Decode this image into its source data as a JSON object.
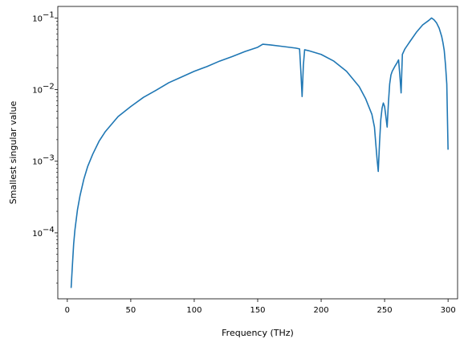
{
  "chart_data": {
    "type": "line",
    "title": "",
    "xlabel": "Frequency (THz)",
    "ylabel": "Smallest singular value",
    "xscale": "linear",
    "yscale": "log",
    "xlim": [
      -7.5,
      307.5
    ],
    "ylim": [
      1.2e-05,
      0.145
    ],
    "grid": false,
    "legend": "none",
    "line_color": "#1f77b4",
    "x_ticks": [
      {
        "value": 0,
        "label": "0"
      },
      {
        "value": 50,
        "label": "50"
      },
      {
        "value": 100,
        "label": "100"
      },
      {
        "value": 150,
        "label": "150"
      },
      {
        "value": 200,
        "label": "200"
      },
      {
        "value": 250,
        "label": "250"
      },
      {
        "value": 300,
        "label": "300"
      }
    ],
    "y_ticks": [
      {
        "value": 0.0001,
        "base": "10",
        "exp": "−4"
      },
      {
        "value": 0.001,
        "base": "10",
        "exp": "−3"
      },
      {
        "value": 0.01,
        "base": "10",
        "exp": "−2"
      },
      {
        "value": 0.1,
        "base": "10",
        "exp": "−1"
      }
    ],
    "series": [
      {
        "x": [
          3,
          4,
          5,
          6,
          8,
          10,
          13,
          16,
          20,
          25,
          30,
          40,
          50,
          60,
          70,
          80,
          90,
          100,
          110,
          120,
          130,
          140,
          150,
          154,
          160,
          170,
          180,
          183,
          184,
          185,
          186,
          187,
          190,
          200,
          210,
          220,
          230,
          235,
          240,
          242,
          243,
          244,
          245,
          246,
          247,
          248,
          249,
          250,
          251,
          252,
          253,
          254,
          255,
          256,
          258,
          260,
          261,
          262,
          263,
          264,
          266,
          270,
          275,
          280,
          285,
          287,
          289,
          291,
          293,
          295,
          296,
          297,
          298,
          299,
          300
        ],
        "y": [
          1.7e-05,
          3.5e-05,
          7e-05,
          0.00011,
          0.00021,
          0.00033,
          0.00056,
          0.00084,
          0.00125,
          0.0019,
          0.0026,
          0.0042,
          0.0058,
          0.0078,
          0.0098,
          0.0125,
          0.015,
          0.018,
          0.021,
          0.025,
          0.029,
          0.034,
          0.039,
          0.043,
          0.042,
          0.04,
          0.038,
          0.037,
          0.018,
          0.008,
          0.022,
          0.036,
          0.035,
          0.031,
          0.025,
          0.018,
          0.011,
          0.0075,
          0.0045,
          0.003,
          0.0018,
          0.0011,
          0.00072,
          0.0018,
          0.0038,
          0.0055,
          0.0065,
          0.0058,
          0.0042,
          0.003,
          0.0065,
          0.012,
          0.016,
          0.018,
          0.021,
          0.024,
          0.026,
          0.016,
          0.009,
          0.031,
          0.037,
          0.047,
          0.063,
          0.08,
          0.093,
          0.1,
          0.094,
          0.085,
          0.072,
          0.055,
          0.045,
          0.035,
          0.022,
          0.012,
          0.00145
        ]
      }
    ]
  }
}
